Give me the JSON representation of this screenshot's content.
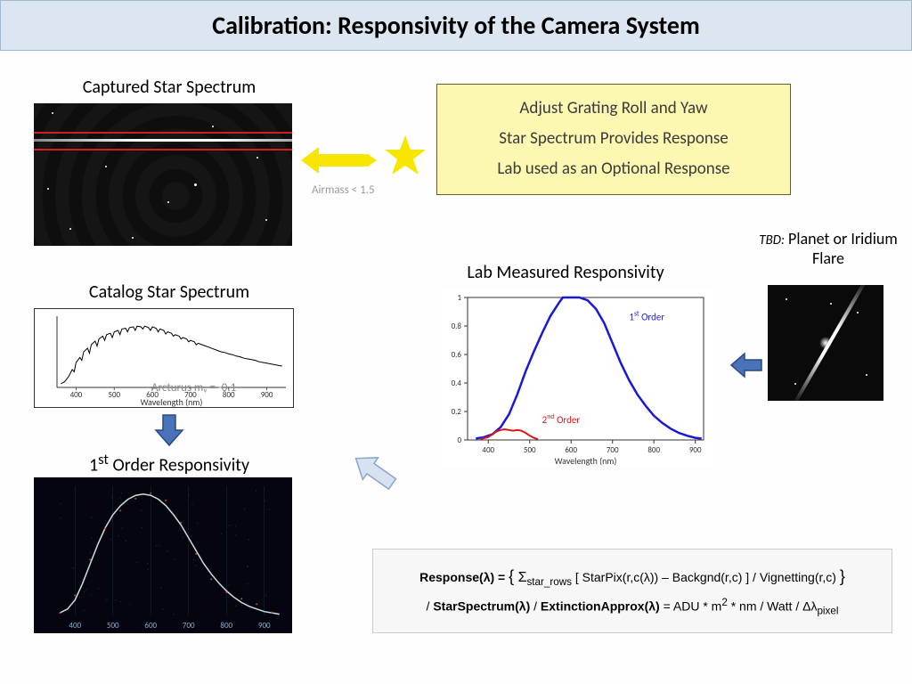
{
  "title": "Calibration:   Responsivity of the Camera System",
  "captured_label": "Captured Star Spectrum",
  "airmass_note": "Airmass < 1.5",
  "yellow_box": {
    "line1": "Adjust Grating Roll and Yaw",
    "line2": "Star Spectrum Provides Response",
    "line3": "Lab used as an Optional Response"
  },
  "catalog_label": "Catalog Star Spectrum",
  "arcturus_note": "Arcturus mᵥ = -0.1",
  "catalog_chart": {
    "xmin": 350,
    "xmax": 950,
    "xticks": [
      400,
      500,
      600,
      700,
      800,
      900
    ],
    "xlabel": "Wavelength (nm)",
    "line_color": "#000000",
    "data": [
      [
        360,
        0.05
      ],
      [
        370,
        0.08
      ],
      [
        380,
        0.15
      ],
      [
        390,
        0.25
      ],
      [
        395,
        0.22
      ],
      [
        400,
        0.35
      ],
      [
        410,
        0.42
      ],
      [
        415,
        0.38
      ],
      [
        420,
        0.5
      ],
      [
        430,
        0.55
      ],
      [
        435,
        0.48
      ],
      [
        440,
        0.6
      ],
      [
        450,
        0.65
      ],
      [
        455,
        0.58
      ],
      [
        460,
        0.68
      ],
      [
        470,
        0.72
      ],
      [
        475,
        0.66
      ],
      [
        480,
        0.74
      ],
      [
        490,
        0.76
      ],
      [
        495,
        0.7
      ],
      [
        500,
        0.78
      ],
      [
        510,
        0.8
      ],
      [
        515,
        0.74
      ],
      [
        520,
        0.82
      ],
      [
        530,
        0.83
      ],
      [
        535,
        0.78
      ],
      [
        540,
        0.84
      ],
      [
        550,
        0.85
      ],
      [
        555,
        0.8
      ],
      [
        560,
        0.86
      ],
      [
        570,
        0.85
      ],
      [
        575,
        0.82
      ],
      [
        580,
        0.86
      ],
      [
        590,
        0.84
      ],
      [
        595,
        0.8
      ],
      [
        600,
        0.85
      ],
      [
        610,
        0.83
      ],
      [
        615,
        0.78
      ],
      [
        620,
        0.82
      ],
      [
        630,
        0.8
      ],
      [
        635,
        0.75
      ],
      [
        640,
        0.78
      ],
      [
        650,
        0.76
      ],
      [
        655,
        0.72
      ],
      [
        660,
        0.74
      ],
      [
        670,
        0.72
      ],
      [
        675,
        0.68
      ],
      [
        680,
        0.7
      ],
      [
        690,
        0.68
      ],
      [
        695,
        0.64
      ],
      [
        700,
        0.66
      ],
      [
        710,
        0.64
      ],
      [
        715,
        0.6
      ],
      [
        720,
        0.62
      ],
      [
        730,
        0.6
      ],
      [
        740,
        0.58
      ],
      [
        750,
        0.56
      ],
      [
        760,
        0.54
      ],
      [
        770,
        0.52
      ],
      [
        780,
        0.5
      ],
      [
        790,
        0.49
      ],
      [
        800,
        0.47
      ],
      [
        810,
        0.46
      ],
      [
        820,
        0.44
      ],
      [
        830,
        0.43
      ],
      [
        840,
        0.41
      ],
      [
        850,
        0.4
      ],
      [
        860,
        0.39
      ],
      [
        870,
        0.38
      ],
      [
        880,
        0.36
      ],
      [
        890,
        0.35
      ],
      [
        900,
        0.34
      ],
      [
        910,
        0.33
      ],
      [
        920,
        0.32
      ],
      [
        930,
        0.31
      ],
      [
        940,
        0.3
      ]
    ]
  },
  "first_order_label_pre": "1",
  "first_order_label_sup": "st",
  "first_order_label_post": " Order Responsivity",
  "first_order_chart": {
    "xmin": 350,
    "xmax": 950,
    "xticks": [
      400,
      500,
      600,
      700,
      800,
      900
    ],
    "line_color": "#c8e0d8",
    "dot_color": "#d04040",
    "data": [
      [
        360,
        0.02
      ],
      [
        380,
        0.05
      ],
      [
        400,
        0.12
      ],
      [
        420,
        0.25
      ],
      [
        440,
        0.4
      ],
      [
        460,
        0.55
      ],
      [
        480,
        0.68
      ],
      [
        500,
        0.78
      ],
      [
        520,
        0.85
      ],
      [
        540,
        0.9
      ],
      [
        560,
        0.93
      ],
      [
        580,
        0.94
      ],
      [
        600,
        0.93
      ],
      [
        620,
        0.9
      ],
      [
        640,
        0.85
      ],
      [
        660,
        0.78
      ],
      [
        680,
        0.7
      ],
      [
        700,
        0.6
      ],
      [
        720,
        0.5
      ],
      [
        740,
        0.4
      ],
      [
        760,
        0.32
      ],
      [
        780,
        0.25
      ],
      [
        800,
        0.19
      ],
      [
        820,
        0.14
      ],
      [
        840,
        0.1
      ],
      [
        860,
        0.07
      ],
      [
        880,
        0.05
      ],
      [
        900,
        0.03
      ],
      [
        920,
        0.02
      ],
      [
        940,
        0.01
      ]
    ]
  },
  "lab_label": "Lab Measured Responsivity",
  "lab_chart": {
    "xmin": 350,
    "xmax": 920,
    "ymin": 0,
    "ymax": 1,
    "xticks": [
      400,
      500,
      600,
      700,
      800,
      900
    ],
    "yticks": [
      0,
      0.2,
      0.4,
      0.6,
      0.8,
      1
    ],
    "xlabel": "Wavelength (nm)",
    "first_order": {
      "color": "#1818d8",
      "label_pre": "1",
      "label_sup": "st",
      "label_post": " Order",
      "data": [
        [
          370,
          0.01
        ],
        [
          390,
          0.02
        ],
        [
          410,
          0.04
        ],
        [
          430,
          0.09
        ],
        [
          450,
          0.18
        ],
        [
          470,
          0.32
        ],
        [
          490,
          0.48
        ],
        [
          510,
          0.62
        ],
        [
          530,
          0.75
        ],
        [
          550,
          0.87
        ],
        [
          570,
          0.96
        ],
        [
          580,
          1.0
        ],
        [
          600,
          1.0
        ],
        [
          620,
          1.0
        ],
        [
          640,
          0.98
        ],
        [
          660,
          0.92
        ],
        [
          680,
          0.82
        ],
        [
          700,
          0.68
        ],
        [
          720,
          0.54
        ],
        [
          740,
          0.42
        ],
        [
          760,
          0.32
        ],
        [
          780,
          0.24
        ],
        [
          800,
          0.17
        ],
        [
          820,
          0.12
        ],
        [
          840,
          0.08
        ],
        [
          860,
          0.05
        ],
        [
          880,
          0.03
        ],
        [
          900,
          0.015
        ],
        [
          915,
          0.01
        ]
      ]
    },
    "second_order": {
      "color": "#d81818",
      "label_pre": "2",
      "label_sup": "nd",
      "label_post": " Order",
      "data": [
        [
          380,
          0.005
        ],
        [
          400,
          0.02
        ],
        [
          410,
          0.04
        ],
        [
          420,
          0.06
        ],
        [
          430,
          0.07
        ],
        [
          440,
          0.075
        ],
        [
          450,
          0.07
        ],
        [
          460,
          0.065
        ],
        [
          470,
          0.07
        ],
        [
          480,
          0.065
        ],
        [
          490,
          0.05
        ],
        [
          500,
          0.03
        ],
        [
          510,
          0.015
        ],
        [
          520,
          0.005
        ]
      ]
    }
  },
  "tbd_label_pre": "TBD:",
  "tbd_label_post": "  Planet or Iridium Flare",
  "formula": {
    "line1_parts": [
      "Response(λ) = ",
      "{",
      " Σ",
      "star_rows",
      " [ StarPix(r,c(λ)) – Backgnd(r,c) ] / ",
      "Vignetting(r,c) ",
      "}"
    ],
    "line2_parts": [
      " / ",
      "StarSpectrum(λ)",
      "  / ",
      "ExtinctionApprox(λ)",
      "  =  ADU * m",
      "2",
      " * nm / Watt / Δλ",
      "pixel"
    ]
  },
  "colors": {
    "yellow_arrow": "#f7e600",
    "blue_arrow_fill": "#4a72b8",
    "blue_arrow_stroke": "#2a4a80",
    "light_arrow_fill": "#d6e2f0",
    "light_arrow_stroke": "#8aa5c8",
    "red_line": "#d02020"
  }
}
